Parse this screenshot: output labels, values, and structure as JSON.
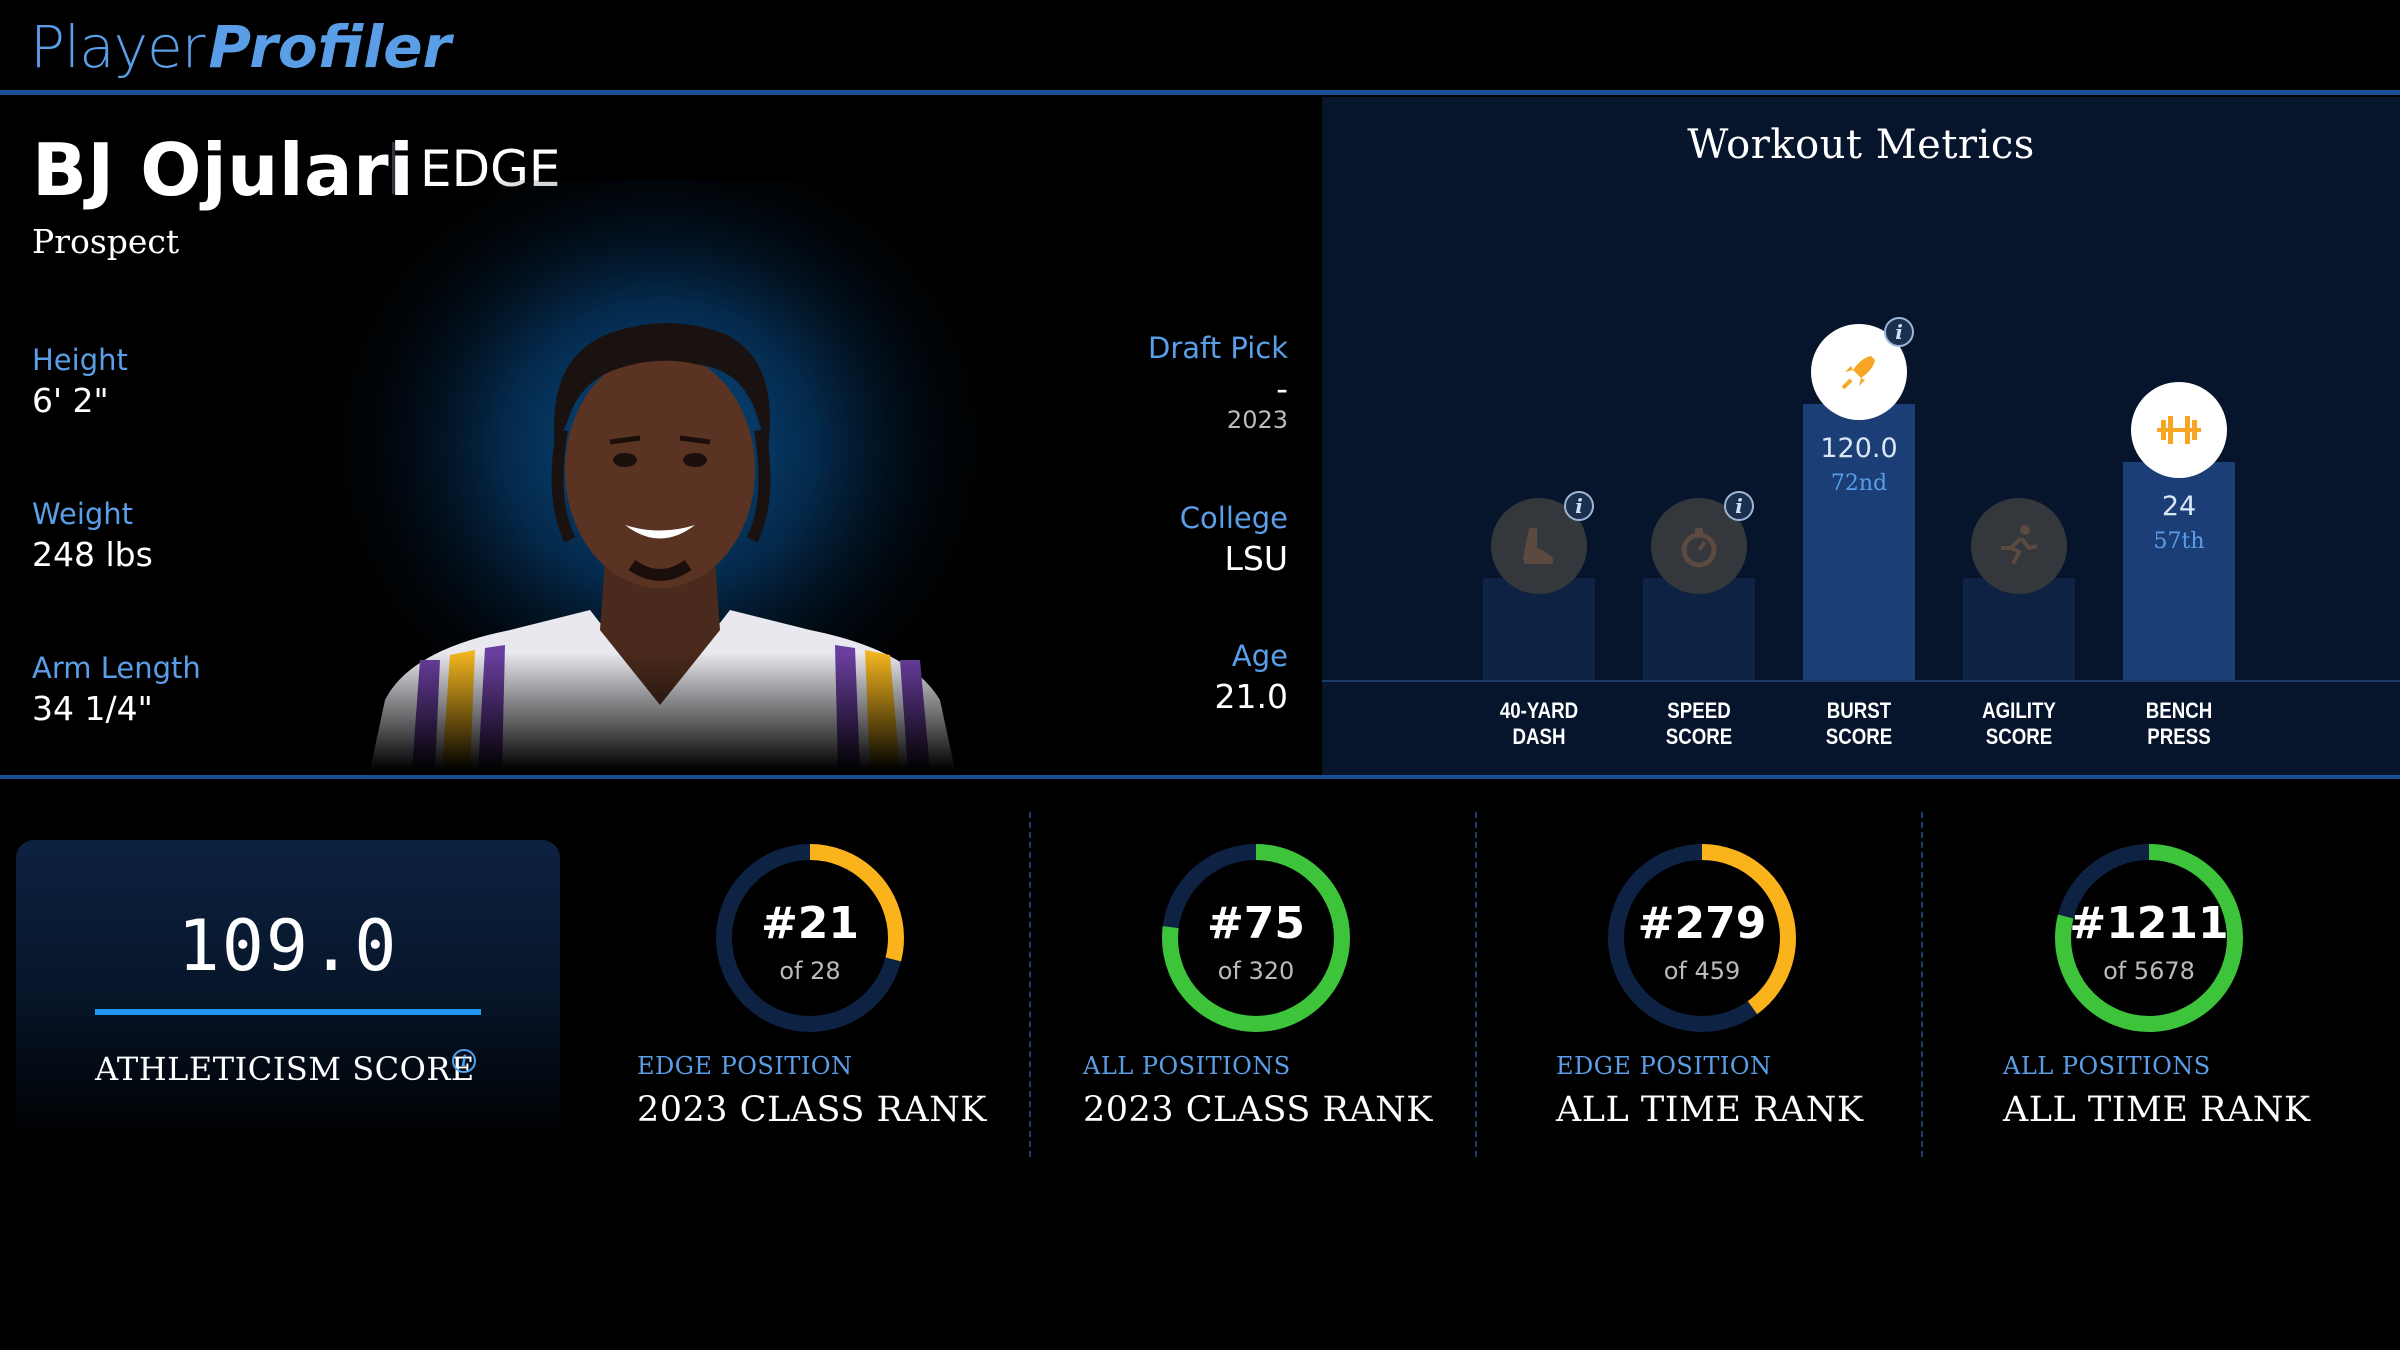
{
  "header": {
    "logo_part1": "Player",
    "logo_part2": "Profiler"
  },
  "player": {
    "name": "BJ Ojulari",
    "position": "EDGE",
    "status": "Prospect",
    "height_label": "Height",
    "height": "6' 2\"",
    "weight_label": "Weight",
    "weight": "248 lbs",
    "arm_label": "Arm Length",
    "arm": "34 1/4\"",
    "draft_label": "Draft Pick",
    "draft": "-",
    "draft_year": "2023",
    "college_label": "College",
    "college": "LSU",
    "age_label": "Age",
    "age": "21.0"
  },
  "workout": {
    "title": "Workout Metrics",
    "metrics": [
      {
        "line1": "40-YARD",
        "line2": "DASH",
        "icon": "shoe-icon",
        "value": "",
        "rank": "",
        "state": "dim"
      },
      {
        "line1": "SPEED",
        "line2": "SCORE",
        "icon": "stopwatch-icon",
        "value": "",
        "rank": "",
        "state": "dim"
      },
      {
        "line1": "BURST",
        "line2": "SCORE",
        "icon": "rocket-icon",
        "value": "120.0",
        "rank": "72nd",
        "state": "active"
      },
      {
        "line1": "AGILITY",
        "line2": "SCORE",
        "icon": "runner-icon",
        "value": "",
        "rank": "",
        "state": "dim"
      },
      {
        "line1": "BENCH",
        "line2": "PRESS",
        "icon": "barbell-icon",
        "value": "24",
        "rank": "57th",
        "state": "active"
      }
    ]
  },
  "athleticism": {
    "value": "109.0",
    "label": "ATHLETICISM SCORE"
  },
  "ranks": [
    {
      "rank": "#21",
      "of": "of 28",
      "sub": "EDGE POSITION",
      "main": "2023 CLASS RANK",
      "color": "#fbb31b",
      "percent": 0.29
    },
    {
      "rank": "#75",
      "of": "of 320",
      "sub": "ALL POSITIONS",
      "main": "2023 CLASS RANK",
      "color": "#3dc43a",
      "percent": 0.77
    },
    {
      "rank": "#279",
      "of": "of 459",
      "sub": "EDGE POSITION",
      "main": "ALL TIME RANK",
      "color": "#fbb31b",
      "percent": 0.4
    },
    {
      "rank": "#1211",
      "of": "of 5678",
      "sub": "ALL POSITIONS",
      "main": "ALL TIME RANK",
      "color": "#3dc43a",
      "percent": 0.79
    }
  ],
  "colors": {
    "accent": "#5b9ee8",
    "ring_track": "#0e2244",
    "yellow": "#fbb31b",
    "green": "#3dc43a",
    "bar_blue": "#2196f3"
  }
}
